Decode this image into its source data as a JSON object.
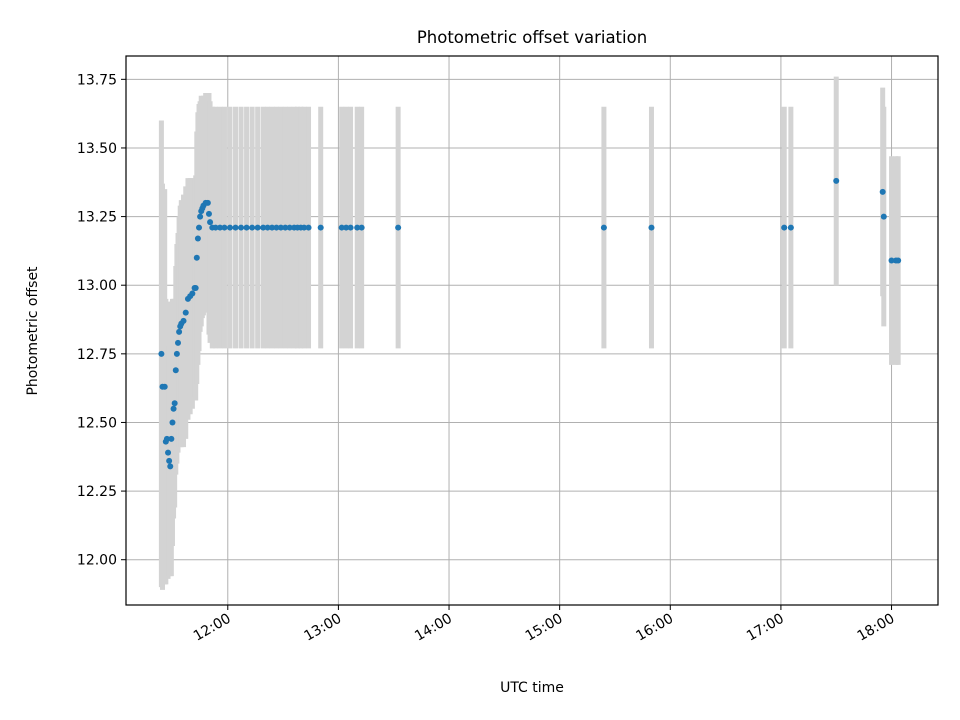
{
  "chart_data": {
    "type": "scatter",
    "title": "Photometric offset variation",
    "xlabel": "UTC time",
    "ylabel": "Photometric offset",
    "x_unit": "UTC time (decimal hours)",
    "xlim": [
      11.08,
      18.42
    ],
    "ylim": [
      11.835,
      13.835
    ],
    "x_ticks": [
      {
        "value": 12,
        "label": "12:00"
      },
      {
        "value": 13,
        "label": "13:00"
      },
      {
        "value": 14,
        "label": "14:00"
      },
      {
        "value": 15,
        "label": "15:00"
      },
      {
        "value": 16,
        "label": "16:00"
      },
      {
        "value": 17,
        "label": "17:00"
      },
      {
        "value": 18,
        "label": "18:00"
      }
    ],
    "y_ticks": [
      {
        "value": 12.0,
        "label": "12.00"
      },
      {
        "value": 12.25,
        "label": "12.25"
      },
      {
        "value": 12.5,
        "label": "12.50"
      },
      {
        "value": 12.75,
        "label": "12.75"
      },
      {
        "value": 13.0,
        "label": "13.00"
      },
      {
        "value": 13.25,
        "label": "13.25"
      },
      {
        "value": 13.5,
        "label": "13.50"
      },
      {
        "value": 13.75,
        "label": "13.75"
      }
    ],
    "grid": true,
    "legend": "none",
    "marker_color": "#1f77b4",
    "error_bar_color": "#d3d3d3",
    "series": [
      {
        "points": [
          [
            11.4,
            12.75,
            0.85
          ],
          [
            11.41,
            12.63,
            0.74
          ],
          [
            11.43,
            12.63,
            0.72
          ],
          [
            11.44,
            12.43,
            0.52
          ],
          [
            11.45,
            12.44,
            0.5
          ],
          [
            11.46,
            12.39,
            0.46
          ],
          [
            11.47,
            12.36,
            0.42
          ],
          [
            11.48,
            12.34,
            0.4
          ],
          [
            11.49,
            12.44,
            0.5
          ],
          [
            11.5,
            12.5,
            0.45
          ],
          [
            11.51,
            12.55,
            0.4
          ],
          [
            11.52,
            12.57,
            0.38
          ],
          [
            11.53,
            12.69,
            0.38
          ],
          [
            11.54,
            12.75,
            0.4
          ],
          [
            11.55,
            12.79,
            0.4
          ],
          [
            11.56,
            12.83,
            0.42
          ],
          [
            11.57,
            12.85,
            0.44
          ],
          [
            11.58,
            12.86,
            0.45
          ],
          [
            11.6,
            12.87,
            0.46
          ],
          [
            11.62,
            12.9,
            0.46
          ],
          [
            11.64,
            12.95,
            0.44
          ],
          [
            11.66,
            12.96,
            0.43
          ],
          [
            11.68,
            12.97,
            0.42
          ],
          [
            11.7,
            12.99,
            0.4
          ],
          [
            11.71,
            12.99,
            0.41
          ],
          [
            11.72,
            13.1,
            0.46
          ],
          [
            11.73,
            13.17,
            0.46
          ],
          [
            11.74,
            13.21,
            0.45
          ],
          [
            11.75,
            13.25,
            0.42
          ],
          [
            11.76,
            13.27,
            0.42
          ],
          [
            11.77,
            13.28,
            0.4
          ],
          [
            11.78,
            13.29,
            0.4
          ],
          [
            11.8,
            13.3,
            0.4
          ],
          [
            11.82,
            13.3,
            0.39
          ],
          [
            11.83,
            13.26,
            0.44
          ],
          [
            11.84,
            13.23,
            0.44
          ],
          [
            11.86,
            13.21,
            0.44
          ],
          [
            11.89,
            13.21,
            0.44
          ],
          [
            11.93,
            13.21,
            0.44
          ],
          [
            11.97,
            13.21,
            0.44
          ],
          [
            12.02,
            13.21,
            0.44
          ],
          [
            12.07,
            13.21,
            0.44
          ],
          [
            12.12,
            13.21,
            0.44
          ],
          [
            12.17,
            13.21,
            0.44
          ],
          [
            12.22,
            13.21,
            0.44
          ],
          [
            12.27,
            13.21,
            0.44
          ],
          [
            12.32,
            13.21,
            0.44
          ],
          [
            12.36,
            13.21,
            0.44
          ],
          [
            12.4,
            13.21,
            0.44
          ],
          [
            12.44,
            13.21,
            0.44
          ],
          [
            12.48,
            13.21,
            0.44
          ],
          [
            12.52,
            13.21,
            0.44
          ],
          [
            12.56,
            13.21,
            0.44
          ],
          [
            12.6,
            13.21,
            0.44
          ],
          [
            12.63,
            13.21,
            0.44
          ],
          [
            12.66,
            13.21,
            0.44
          ],
          [
            12.69,
            13.21,
            0.44
          ],
          [
            12.73,
            13.21,
            0.44
          ],
          [
            12.84,
            13.21,
            0.44
          ],
          [
            13.03,
            13.21,
            0.44
          ],
          [
            13.07,
            13.21,
            0.44
          ],
          [
            13.11,
            13.21,
            0.44
          ],
          [
            13.17,
            13.21,
            0.44
          ],
          [
            13.21,
            13.21,
            0.44
          ],
          [
            13.54,
            13.21,
            0.44
          ],
          [
            15.4,
            13.21,
            0.44
          ],
          [
            15.83,
            13.21,
            0.44
          ],
          [
            17.03,
            13.21,
            0.44
          ],
          [
            17.09,
            13.21,
            0.44
          ],
          [
            17.5,
            13.38,
            0.38
          ],
          [
            17.92,
            13.34,
            0.38
          ],
          [
            17.93,
            13.25,
            0.4
          ],
          [
            18.0,
            13.09,
            0.38
          ],
          [
            18.04,
            13.09,
            0.38
          ],
          [
            18.06,
            13.09,
            0.38
          ]
        ]
      }
    ]
  }
}
